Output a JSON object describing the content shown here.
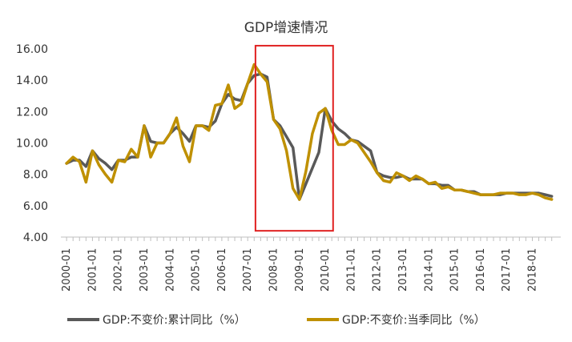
{
  "chart_data": {
    "type": "line",
    "title": "GDP增速情况",
    "xlabel": "",
    "ylabel": "",
    "ylim": [
      4.0,
      16.0
    ],
    "yticks": [
      "4.00",
      "6.00",
      "8.00",
      "10.00",
      "12.00",
      "14.00",
      "16.00"
    ],
    "xticks": [
      "2000-01",
      "2001-01",
      "2002-01",
      "2003-01",
      "2004-01",
      "2005-01",
      "2006-01",
      "2007-01",
      "2008-01",
      "2009-01",
      "2010-01",
      "2011-01",
      "2012-01",
      "2013-01",
      "2014-01",
      "2015-01",
      "2016-01",
      "2017-01",
      "2018-01"
    ],
    "grid": false,
    "legend_position": "bottom",
    "x": [
      2000.0,
      2000.25,
      2000.5,
      2000.75,
      2001.0,
      2001.25,
      2001.5,
      2001.75,
      2002.0,
      2002.25,
      2002.5,
      2002.75,
      2003.0,
      2003.25,
      2003.5,
      2003.75,
      2004.0,
      2004.25,
      2004.5,
      2004.75,
      2005.0,
      2005.25,
      2005.5,
      2005.75,
      2006.0,
      2006.25,
      2006.5,
      2006.75,
      2007.0,
      2007.25,
      2007.5,
      2007.75,
      2008.0,
      2008.25,
      2008.5,
      2008.75,
      2009.0,
      2009.25,
      2009.5,
      2009.75,
      2010.0,
      2010.25,
      2010.5,
      2010.75,
      2011.0,
      2011.25,
      2011.5,
      2011.75,
      2012.0,
      2012.25,
      2012.5,
      2012.75,
      2013.0,
      2013.25,
      2013.5,
      2013.75,
      2014.0,
      2014.25,
      2014.5,
      2014.75,
      2015.0,
      2015.25,
      2015.5,
      2015.75,
      2016.0,
      2016.25,
      2016.5,
      2016.75,
      2017.0,
      2017.25,
      2017.5,
      2017.75,
      2018.0,
      2018.25,
      2018.5,
      2018.75
    ],
    "series": [
      {
        "name": "GDP:不变价:累计同比（%）",
        "color": "#595959",
        "values": [
          8.7,
          8.9,
          8.9,
          8.5,
          9.5,
          9.0,
          8.7,
          8.3,
          8.9,
          8.9,
          9.1,
          9.1,
          11.1,
          10.1,
          10.0,
          10.0,
          10.6,
          11.0,
          10.6,
          10.1,
          11.1,
          11.1,
          11.0,
          11.4,
          12.5,
          13.1,
          12.8,
          12.7,
          13.8,
          14.3,
          14.4,
          14.2,
          11.5,
          11.1,
          10.4,
          9.7,
          6.4,
          7.4,
          8.4,
          9.4,
          12.2,
          11.4,
          10.9,
          10.6,
          10.2,
          10.1,
          9.8,
          9.5,
          8.1,
          7.9,
          7.8,
          7.8,
          7.9,
          7.7,
          7.7,
          7.7,
          7.4,
          7.4,
          7.3,
          7.3,
          7.0,
          7.0,
          6.9,
          6.9,
          6.7,
          6.7,
          6.7,
          6.7,
          6.8,
          6.8,
          6.8,
          6.8,
          6.8,
          6.8,
          6.7,
          6.6
        ]
      },
      {
        "name": "GDP:不变价:当季同比（%）",
        "color": "#bf9000",
        "values": [
          8.7,
          9.1,
          8.8,
          7.5,
          9.5,
          8.6,
          8.0,
          7.5,
          8.9,
          8.8,
          9.6,
          9.1,
          11.1,
          9.1,
          10.0,
          10.0,
          10.6,
          11.6,
          9.8,
          8.8,
          11.1,
          11.1,
          10.8,
          12.4,
          12.5,
          13.7,
          12.2,
          12.5,
          13.8,
          15.0,
          14.4,
          13.9,
          11.5,
          10.9,
          9.5,
          7.1,
          6.4,
          8.2,
          10.6,
          11.9,
          12.2,
          10.8,
          9.9,
          9.9,
          10.2,
          10.0,
          9.4,
          8.8,
          8.1,
          7.6,
          7.5,
          8.1,
          7.9,
          7.6,
          7.9,
          7.7,
          7.4,
          7.5,
          7.1,
          7.2,
          7.0,
          7.0,
          6.9,
          6.8,
          6.7,
          6.7,
          6.7,
          6.8,
          6.8,
          6.8,
          6.7,
          6.7,
          6.8,
          6.7,
          6.5,
          6.4
        ]
      }
    ],
    "annotations": [
      {
        "type": "highlight-rectangle",
        "color": "#e02020",
        "x_range": [
          2007.3,
          2010.3
        ],
        "y_range": [
          4.4,
          16.2
        ]
      }
    ]
  }
}
